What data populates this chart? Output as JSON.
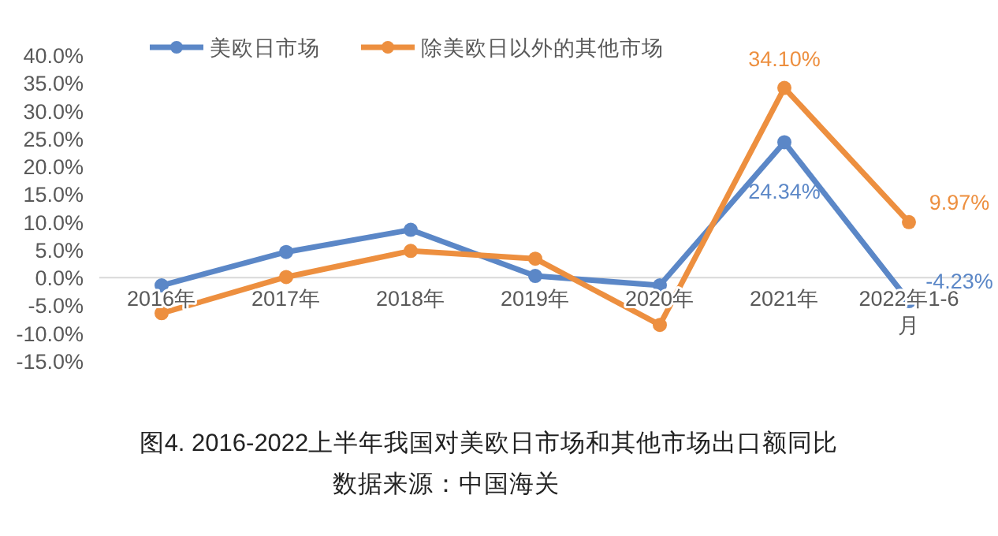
{
  "chart_data": {
    "type": "line",
    "title": "图4. 2016-2022上半年我国对美欧日市场和其他市场出口额同比",
    "annotations": [
      "数据来源：中国海关"
    ],
    "categories": [
      "2016年",
      "2017年",
      "2018年",
      "2019年",
      "2020年",
      "2021年",
      "2022年1-6月"
    ],
    "series": [
      {
        "name": "美欧日市场",
        "color": "#5b87c7",
        "values": [
          -1.4,
          4.6,
          8.6,
          0.3,
          -1.4,
          24.34,
          -4.23
        ],
        "value_labels": [
          null,
          null,
          null,
          null,
          null,
          "24.34%",
          "-4.23%"
        ]
      },
      {
        "name": "除美欧日以外的其他市场",
        "color": "#ed8f3f",
        "values": [
          -6.4,
          0.1,
          4.8,
          3.4,
          -8.5,
          34.1,
          9.97
        ],
        "value_labels": [
          null,
          null,
          null,
          null,
          null,
          "34.10%",
          "9.97%"
        ]
      }
    ],
    "ylim": [
      -15,
      40
    ],
    "yticks": [
      {
        "value": 40,
        "label": "40.0%"
      },
      {
        "value": 35,
        "label": "35.0%"
      },
      {
        "value": 30,
        "label": "30.0%"
      },
      {
        "value": 25,
        "label": "25.0%"
      },
      {
        "value": 20,
        "label": "20.0%"
      },
      {
        "value": 15,
        "label": "15.0%"
      },
      {
        "value": 10,
        "label": "10.0%"
      },
      {
        "value": 5,
        "label": "5.0%"
      },
      {
        "value": 0,
        "label": "0.0%"
      },
      {
        "value": -5,
        "label": "-5.0%"
      },
      {
        "value": -10,
        "label": "-10.0%"
      },
      {
        "value": -15,
        "label": "-15.0%"
      }
    ],
    "grid": false,
    "legend": "top",
    "marker": "circle",
    "line_style": "solid"
  }
}
